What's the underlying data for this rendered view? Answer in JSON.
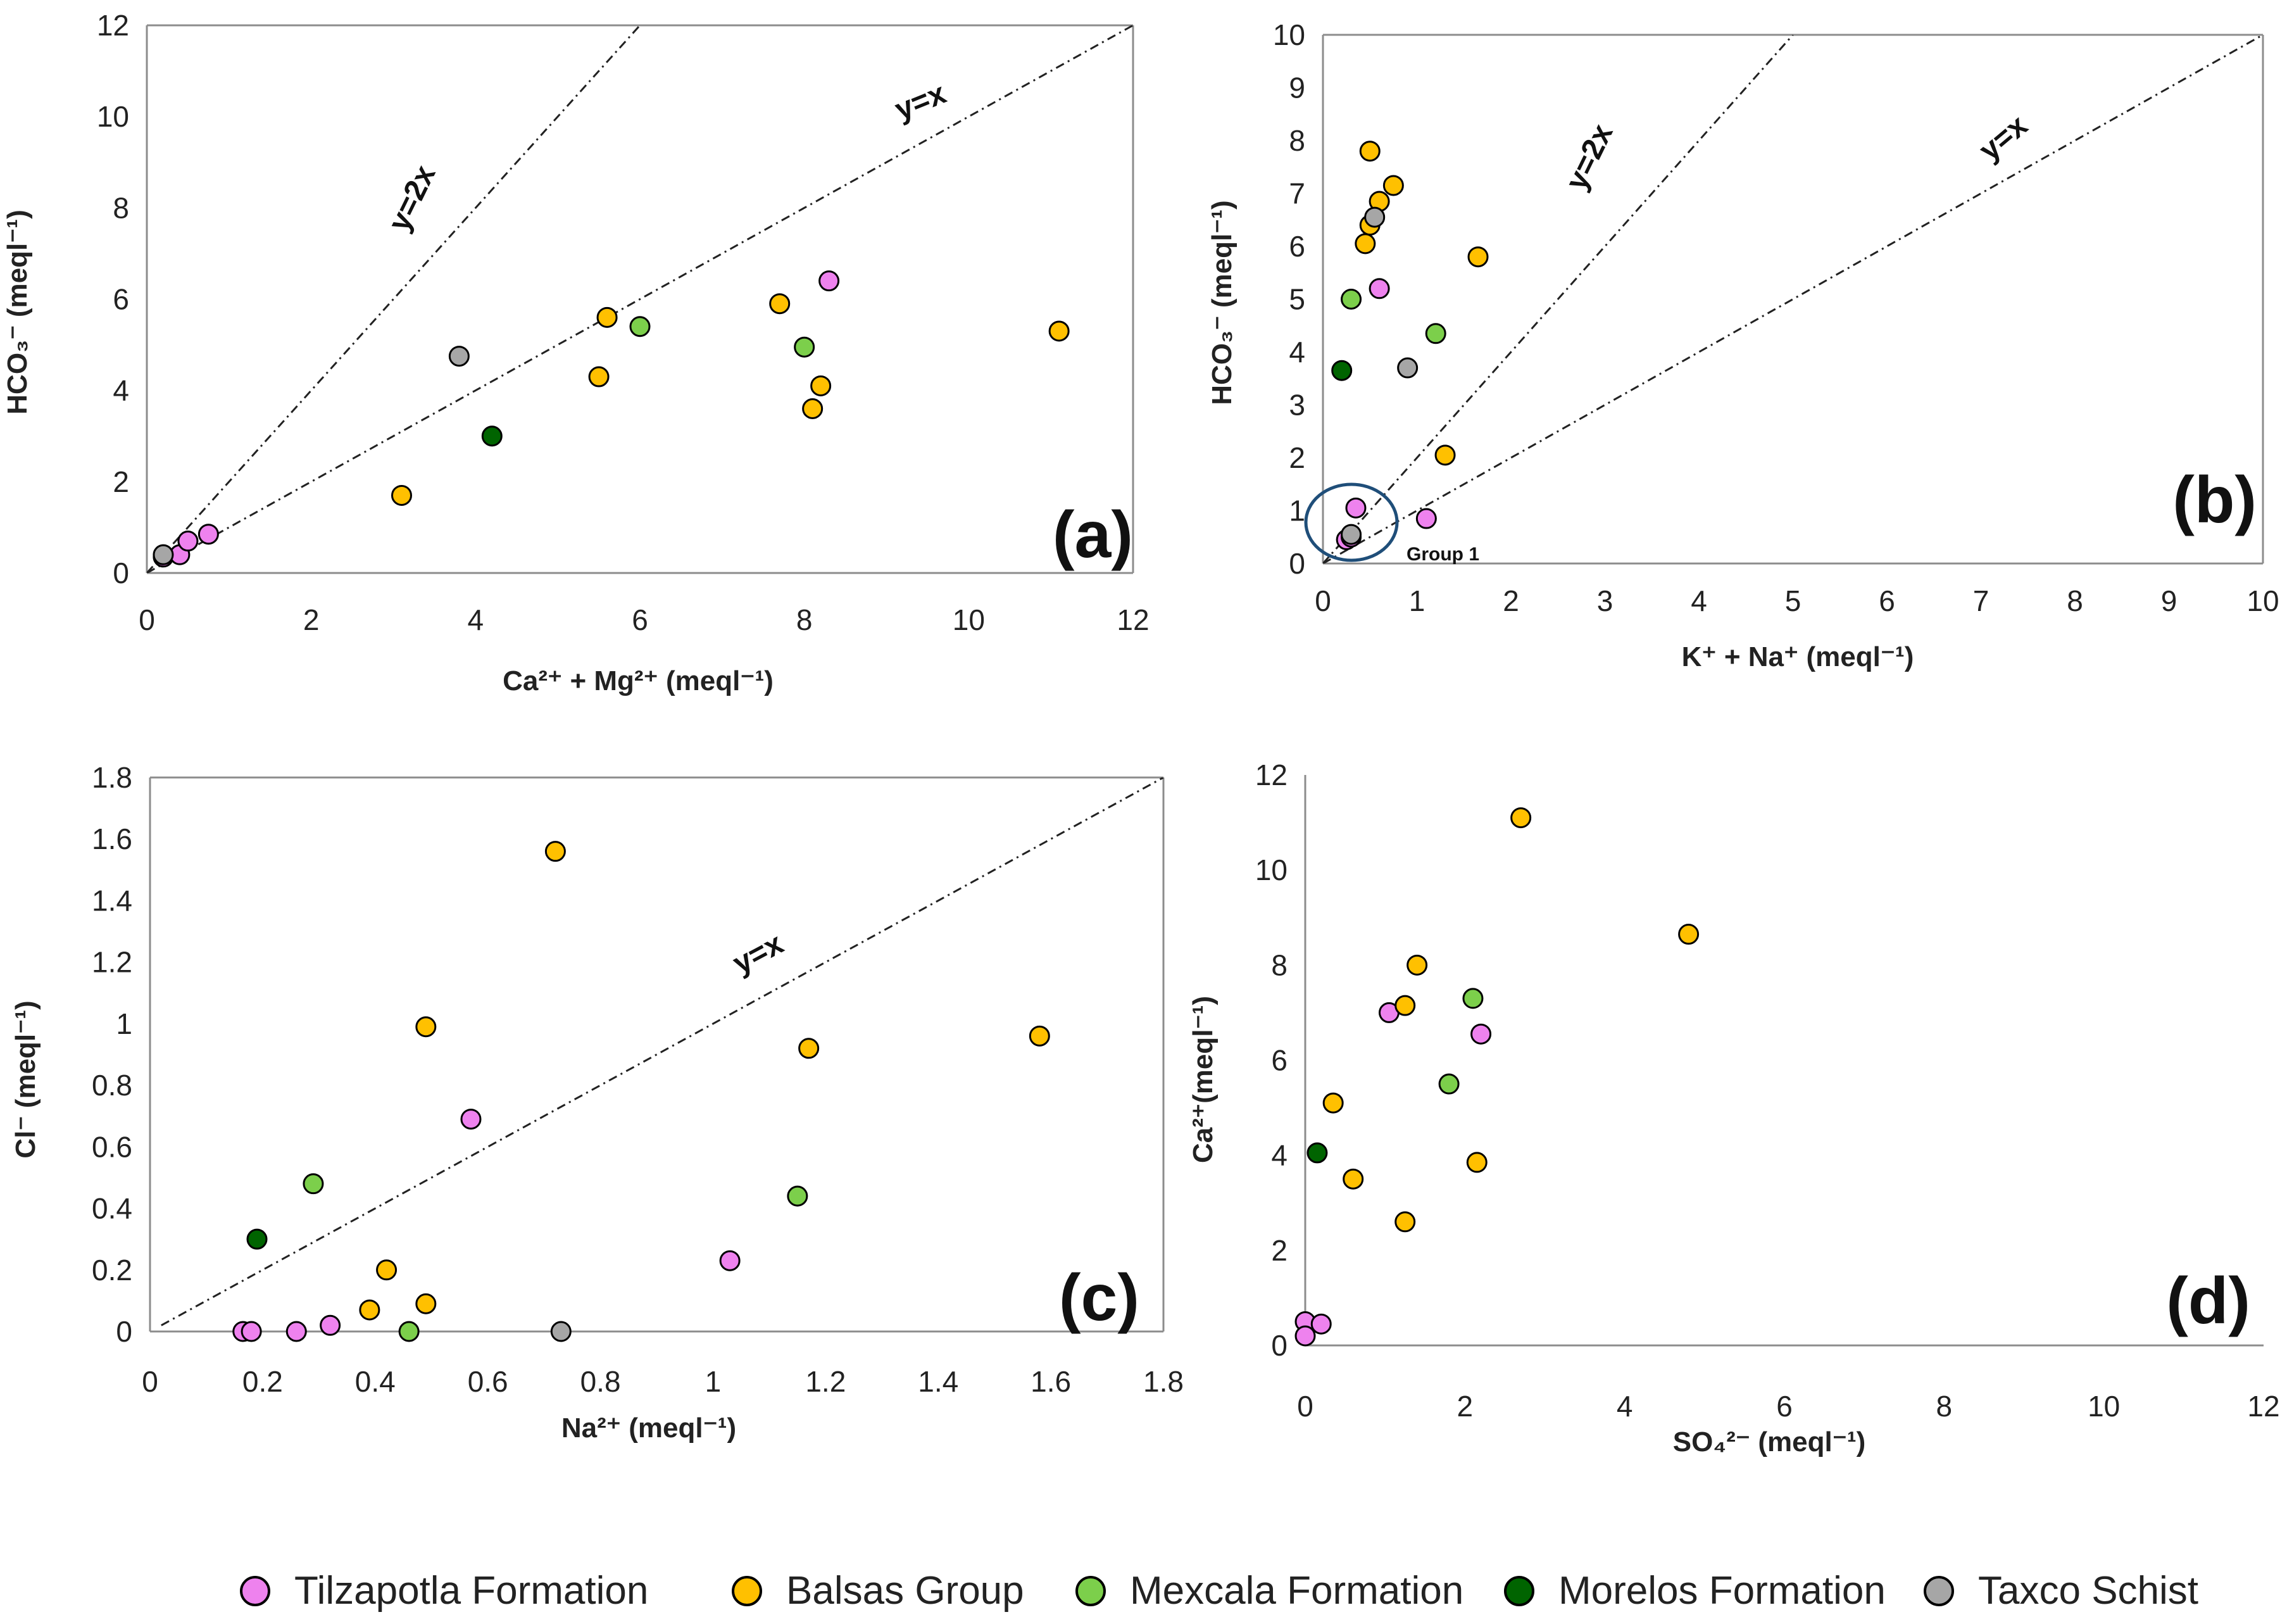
{
  "colors": {
    "Tilzapotla Formation": "#ee82ee",
    "Balsas Group": "#ffc000",
    "Mexcala Formation": "#7ccf4b",
    "Morelos Formation": "#006400",
    "Taxco Schist": "#a6a6a6",
    "circle": "#1f4e79"
  },
  "legend": [
    {
      "label": "Tilzapotla Formation",
      "color": "#ee82ee"
    },
    {
      "label": "Balsas Group",
      "color": "#ffc000"
    },
    {
      "label": "Mexcala Formation",
      "color": "#7ccf4b"
    },
    {
      "label": "Morelos Formation",
      "color": "#006400"
    },
    {
      "label": "Taxco Schist",
      "color": "#a6a6a6"
    }
  ],
  "chart_data": [
    {
      "type": "scatter",
      "title": "(a)",
      "panel_label": "(a)",
      "xlabel": "Ca²⁺ + Mg²⁺ (meql⁻¹)",
      "ylabel": "HCO₃⁻ (meql⁻¹)",
      "xlim": [
        0,
        12
      ],
      "ylim": [
        0,
        12
      ],
      "xticks": [
        "0",
        "2",
        "4",
        "6",
        "8",
        "10",
        "12"
      ],
      "yticks": [
        "0",
        "2",
        "4",
        "6",
        "8",
        "10",
        "12"
      ],
      "reference_lines": [
        {
          "label": "y=2x",
          "slope": 2
        },
        {
          "label": "y=x",
          "slope": 1
        }
      ],
      "series": [
        {
          "name": "Tilzapotla Formation",
          "points": [
            [
              0.2,
              0.35
            ],
            [
              0.4,
              0.4
            ],
            [
              0.5,
              0.7
            ],
            [
              0.75,
              0.85
            ],
            [
              8.3,
              6.4
            ]
          ]
        },
        {
          "name": "Balsas Group",
          "points": [
            [
              3.1,
              1.7
            ],
            [
              5.5,
              4.3
            ],
            [
              5.6,
              5.6
            ],
            [
              7.7,
              5.9
            ],
            [
              8.2,
              4.1
            ],
            [
              8.1,
              3.6
            ],
            [
              11.1,
              5.3
            ]
          ]
        },
        {
          "name": "Mexcala Formation",
          "points": [
            [
              6.0,
              5.4
            ],
            [
              8.0,
              4.95
            ]
          ]
        },
        {
          "name": "Morelos Formation",
          "points": [
            [
              4.2,
              3.0
            ]
          ]
        },
        {
          "name": "Taxco Schist",
          "points": [
            [
              3.8,
              4.75
            ],
            [
              0.2,
              0.4
            ]
          ]
        }
      ]
    },
    {
      "type": "scatter",
      "title": "(b)",
      "panel_label": "(b)",
      "xlabel": "K⁺ + Na⁺  (meql⁻¹)",
      "ylabel": "HCO₃⁻ (meql⁻¹)",
      "xlim": [
        0,
        10
      ],
      "ylim": [
        0,
        10
      ],
      "xticks": [
        "0",
        "1",
        "2",
        "3",
        "4",
        "5",
        "6",
        "7",
        "8",
        "9",
        "10"
      ],
      "yticks": [
        "0",
        "1",
        "2",
        "3",
        "4",
        "5",
        "6",
        "7",
        "8",
        "9",
        "10"
      ],
      "annotation": "Group 1",
      "reference_lines": [
        {
          "label": "y=2x",
          "slope": 2
        },
        {
          "label": "y=x",
          "slope": 1
        }
      ],
      "series": [
        {
          "name": "Tilzapotla Formation",
          "points": [
            [
              0.35,
              1.05
            ],
            [
              0.25,
              0.45
            ],
            [
              0.3,
              0.5
            ],
            [
              1.1,
              0.85
            ],
            [
              0.6,
              5.2
            ]
          ]
        },
        {
          "name": "Balsas Group",
          "points": [
            [
              0.5,
              7.8
            ],
            [
              0.75,
              7.15
            ],
            [
              0.6,
              6.85
            ],
            [
              0.5,
              6.4
            ],
            [
              0.45,
              6.05
            ],
            [
              1.65,
              5.8
            ],
            [
              1.3,
              2.05
            ]
          ]
        },
        {
          "name": "Mexcala Formation",
          "points": [
            [
              0.3,
              5.0
            ],
            [
              1.2,
              4.35
            ]
          ]
        },
        {
          "name": "Morelos Formation",
          "points": [
            [
              0.2,
              3.65
            ]
          ]
        },
        {
          "name": "Taxco Schist",
          "points": [
            [
              0.55,
              6.55
            ],
            [
              0.9,
              3.7
            ],
            [
              0.3,
              0.55
            ]
          ]
        }
      ]
    },
    {
      "type": "scatter",
      "title": "(c)",
      "panel_label": "(c)",
      "xlabel": "Na²⁺ (meql⁻¹)",
      "ylabel": "Cl⁻ (meql⁻¹)",
      "xlim": [
        0,
        1.8
      ],
      "ylim": [
        0,
        1.8
      ],
      "xticks": [
        "0",
        "0.2",
        "0.4",
        "0.6",
        "0.8",
        "1",
        "1.2",
        "1.4",
        "1.6",
        "1.8"
      ],
      "yticks": [
        "0",
        "0.2",
        "0.4",
        "0.6",
        "0.8",
        "1",
        "1.2",
        "1.4",
        "1.6",
        "1.8"
      ],
      "reference_lines": [
        {
          "label": "y=x",
          "slope": 1
        }
      ],
      "series": [
        {
          "name": "Tilzapotla Formation",
          "points": [
            [
              0.165,
              0.0
            ],
            [
              0.18,
              0.0
            ],
            [
              0.26,
              0.0
            ],
            [
              0.32,
              0.02
            ],
            [
              0.57,
              0.69
            ],
            [
              1.03,
              0.23
            ]
          ]
        },
        {
          "name": "Balsas Group",
          "points": [
            [
              0.72,
              1.56
            ],
            [
              0.49,
              0.99
            ],
            [
              1.17,
              0.92
            ],
            [
              1.58,
              0.96
            ],
            [
              0.42,
              0.2
            ],
            [
              0.39,
              0.07
            ],
            [
              0.49,
              0.09
            ]
          ]
        },
        {
          "name": "Mexcala Formation",
          "points": [
            [
              0.29,
              0.48
            ],
            [
              1.15,
              0.44
            ],
            [
              0.46,
              0.0
            ]
          ]
        },
        {
          "name": "Morelos Formation",
          "points": [
            [
              0.19,
              0.3
            ]
          ]
        },
        {
          "name": "Taxco Schist",
          "points": [
            [
              0.73,
              0.0
            ]
          ]
        }
      ]
    },
    {
      "type": "scatter",
      "title": "(d)",
      "panel_label": "(d)",
      "xlabel": "SO₄²⁻ (meql⁻¹)",
      "ylabel": "Ca²⁺(meql⁻¹)",
      "xlim": [
        0,
        12
      ],
      "ylim": [
        0,
        12
      ],
      "xticks": [
        "0",
        "2",
        "4",
        "6",
        "8",
        "10",
        "12"
      ],
      "yticks": [
        "0",
        "2",
        "4",
        "6",
        "8",
        "10",
        "12"
      ],
      "series": [
        {
          "name": "Tilzapotla Formation",
          "points": [
            [
              1.05,
              7.0
            ],
            [
              2.2,
              6.55
            ],
            [
              0.0,
              0.5
            ],
            [
              0.2,
              0.45
            ],
            [
              0.0,
              0.2
            ]
          ]
        },
        {
          "name": "Balsas Group",
          "points": [
            [
              2.7,
              11.1
            ],
            [
              4.8,
              8.65
            ],
            [
              1.4,
              8.0
            ],
            [
              1.25,
              7.15
            ],
            [
              0.35,
              5.1
            ],
            [
              0.6,
              3.5
            ],
            [
              2.15,
              3.85
            ],
            [
              1.25,
              2.6
            ]
          ]
        },
        {
          "name": "Mexcala Formation",
          "points": [
            [
              2.1,
              7.3
            ],
            [
              1.8,
              5.5
            ]
          ]
        },
        {
          "name": "Morelos Formation",
          "points": [
            [
              0.15,
              4.05
            ]
          ]
        },
        {
          "name": "Taxco Schist",
          "points": []
        }
      ]
    }
  ]
}
